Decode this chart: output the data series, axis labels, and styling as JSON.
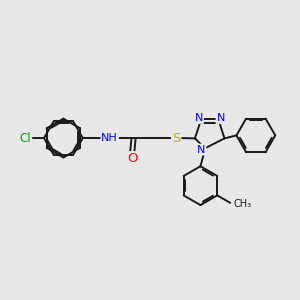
{
  "bg_color": "#e8e8e8",
  "bond_color": "#1a1a1a",
  "bond_width": 1.4,
  "atom_colors": {
    "N": "#0000ff",
    "O": "#ff0000",
    "S": "#bbaa00",
    "Cl": "#00aa00",
    "H": "#0000ff",
    "C": "#1a1a1a"
  },
  "font_size": 8.5,
  "fig_size": [
    3.0,
    3.0
  ],
  "dpi": 100
}
